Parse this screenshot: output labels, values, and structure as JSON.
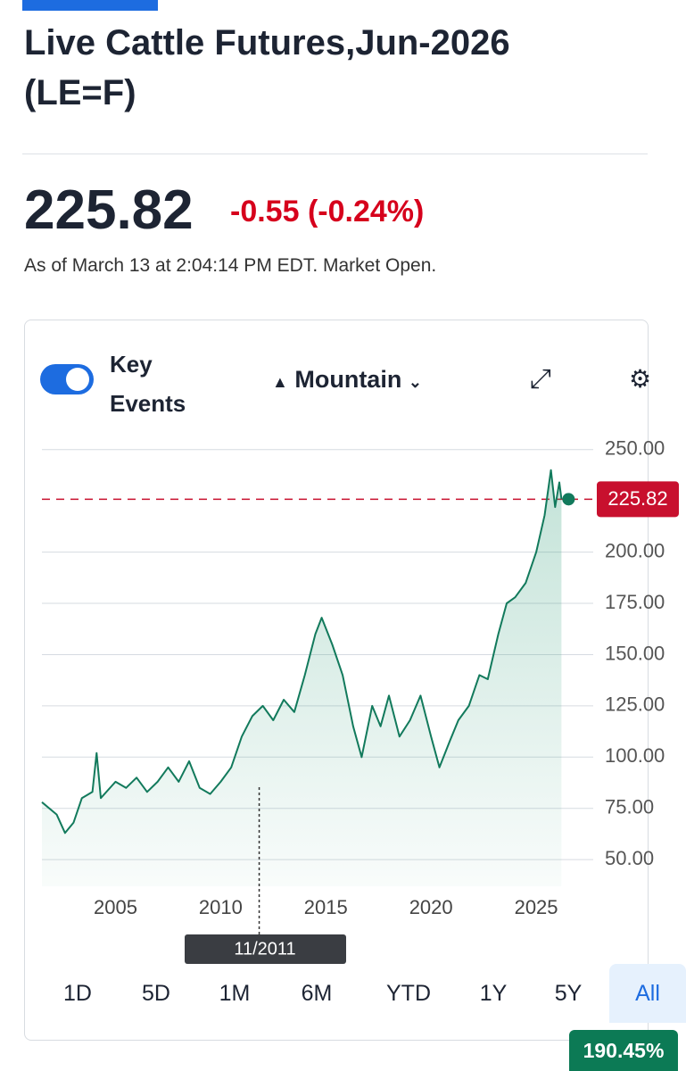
{
  "header": {
    "title_line1": "Live Cattle Futures,Jun-2026",
    "title_line2": "(LE=F)",
    "price": "225.82",
    "change": "-0.55 (-0.24%)",
    "as_of": "As of March 13 at 2:04:14 PM EDT. Market Open."
  },
  "toolbar": {
    "key": "Key",
    "events": "Events",
    "chart_type": "Mountain"
  },
  "chart_data": {
    "type": "area",
    "color": "#127a5c",
    "x": [
      2001.5,
      2002.2,
      2002.6,
      2003.0,
      2003.4,
      2003.9,
      2004.1,
      2004.3,
      2005.0,
      2005.5,
      2006.0,
      2006.5,
      2007.0,
      2007.5,
      2008.0,
      2008.5,
      2009.0,
      2009.5,
      2010.0,
      2010.5,
      2011.0,
      2011.5,
      2012.0,
      2012.5,
      2013.0,
      2013.5,
      2014.0,
      2014.5,
      2014.8,
      2015.3,
      2015.8,
      2016.3,
      2016.7,
      2017.2,
      2017.6,
      2018.0,
      2018.5,
      2019.0,
      2019.5,
      2020.0,
      2020.4,
      2020.9,
      2021.3,
      2021.8,
      2022.3,
      2022.7,
      2023.2,
      2023.6,
      2024.0,
      2024.5,
      2025.0,
      2025.4,
      2025.7,
      2025.9,
      2026.1,
      2026.2
    ],
    "values": [
      78,
      72,
      63,
      68,
      80,
      83,
      102,
      80,
      88,
      85,
      90,
      83,
      88,
      95,
      88,
      98,
      85,
      82,
      88,
      95,
      110,
      120,
      125,
      118,
      128,
      122,
      140,
      160,
      168,
      155,
      140,
      115,
      100,
      125,
      115,
      130,
      110,
      118,
      130,
      110,
      95,
      108,
      118,
      125,
      140,
      138,
      160,
      175,
      178,
      185,
      200,
      218,
      240,
      222,
      234,
      225.82
    ],
    "xlim": [
      2001.5,
      2027.5
    ],
    "ylim": [
      37,
      256
    ],
    "xticks": [
      2005,
      2010,
      2015,
      2020,
      2025
    ],
    "yticks": [
      {
        "value": 250,
        "label": "250.00"
      },
      {
        "value": 200,
        "label": "200.00"
      },
      {
        "value": 175,
        "label": "175.00"
      },
      {
        "value": 150,
        "label": "150.00"
      },
      {
        "value": 125,
        "label": "125.00"
      },
      {
        "value": 100,
        "label": "100.00"
      },
      {
        "value": 75,
        "label": "75.00"
      },
      {
        "value": 50,
        "label": "50.00"
      }
    ],
    "grid": true,
    "reference_value": 225.82,
    "reference_color": "#c8102e",
    "crosshair": {
      "x": 2011.83,
      "label": "11/2011"
    }
  },
  "ranges": [
    "1D",
    "5D",
    "1M",
    "6M",
    "YTD",
    "1Y",
    "5Y",
    "All"
  ],
  "selected_range": "All",
  "range_change": "190.45%"
}
